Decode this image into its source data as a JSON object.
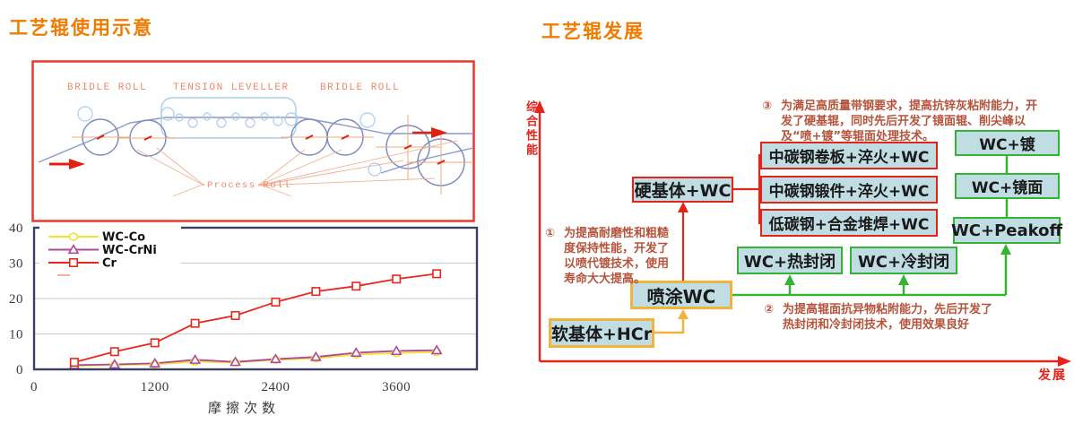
{
  "left": {
    "title": "工艺辊使用示意",
    "schematic": {
      "labels": {
        "bridle_left": "BRIDLE ROLL",
        "tension": "TENSION LEVELLER",
        "bridle_right": "BRIDLE ROLL",
        "process": "Process Roll"
      }
    },
    "chart_data": {
      "type": "line",
      "x": [
        400,
        800,
        1200,
        1600,
        2000,
        2400,
        2800,
        3200,
        3600,
        4000
      ],
      "series": [
        {
          "name": "WC-Co",
          "color": "#f2e22c",
          "marker": "circle",
          "values": [
            1,
            1.2,
            1.4,
            2.2,
            1.9,
            2.7,
            3.1,
            4.2,
            4.6,
            4.9
          ]
        },
        {
          "name": "WC-CrNi",
          "color": "#b0489c",
          "marker": "triangle",
          "values": [
            1.2,
            1.4,
            1.7,
            2.7,
            2.1,
            2.9,
            3.5,
            4.7,
            5.2,
            5.4
          ]
        },
        {
          "name": "Cr",
          "color": "#e8281e",
          "marker": "square",
          "values": [
            2,
            5,
            7.5,
            13,
            15.2,
            19,
            22,
            23.5,
            25.5,
            27
          ]
        }
      ],
      "title": "",
      "xlabel": "摩擦次数",
      "ylabel": "",
      "x_ticks": [
        0,
        1200,
        2400,
        3600
      ],
      "y_ticks": [
        0,
        10,
        20,
        30,
        40
      ],
      "xlim": [
        0,
        4400
      ],
      "ylim": [
        0,
        40
      ],
      "grid": "horizontal",
      "legend_position": "top-left"
    }
  },
  "right": {
    "title": "工艺辊发展",
    "y_axis_label": "综合性能",
    "x_axis_label": "发展",
    "boxes": [
      {
        "label": "软基体+HCr"
      },
      {
        "label": "喷涂WC"
      },
      {
        "label": "硬基体+WC"
      },
      {
        "label": "中碳钢卷板+淬火+WC"
      },
      {
        "label": "中碳钢锻件+淬火+WC"
      },
      {
        "label": "低碳钢+合金堆焊+WC"
      },
      {
        "label": "WC+热封闭"
      },
      {
        "label": "WC+冷封闭"
      },
      {
        "label": "WC+镀"
      },
      {
        "label": "WC+镜面"
      },
      {
        "label": "WC+Peakoff"
      }
    ],
    "notes": [
      {
        "num": "①",
        "text": "为提高耐磨性和粗糙度保持性能，开发了以喷代镀技术，使用寿命大大提高。"
      },
      {
        "num": "②",
        "text": "为提高辊面抗异物粘附能力，先后开发了热封闭和冷封闭技术，使用效果良好"
      },
      {
        "num": "③",
        "text": "为满足高质量带钢要求，提高抗锌灰粘附能力，开发了硬基辊，同时先后开发了镜面辊、削尖峰以及“喷+镀”等辊面处理技术。"
      }
    ]
  },
  "colors": {
    "title_orange": "#f07b00",
    "red": "#e2241a",
    "green": "#35b334",
    "yellow": "#f2b33d",
    "box_fill": "#bfdde2",
    "note_text": "#b5543c",
    "chart_frame": "#3a3f63",
    "schematic_border": "#e8392b"
  }
}
